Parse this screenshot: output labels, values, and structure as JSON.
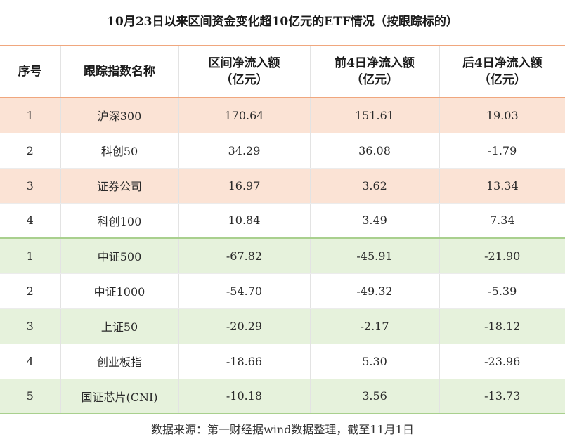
{
  "title": "10月23日以来区间资金变化超10亿元的ETF情况（按跟踪标的）",
  "header": {
    "seq": "序号",
    "index_name": "跟踪指数名称",
    "period_net_inflow": [
      "区间净流入额",
      "（亿元）"
    ],
    "first4d_net_inflow": [
      "前4日净流入额",
      "（亿元）"
    ],
    "last4d_net_inflow": [
      "后4日净流入额",
      "（亿元）"
    ]
  },
  "inflow_rows": [
    {
      "seq": "1",
      "name": "沪深300",
      "period": "170.64",
      "first4": "151.61",
      "last4": "19.03"
    },
    {
      "seq": "2",
      "name": "科创50",
      "period": "34.29",
      "first4": "36.08",
      "last4": "-1.79"
    },
    {
      "seq": "3",
      "name": "证券公司",
      "period": "16.97",
      "first4": "3.62",
      "last4": "13.34"
    },
    {
      "seq": "4",
      "name": "科创100",
      "period": "10.84",
      "first4": "3.49",
      "last4": "7.34"
    }
  ],
  "outflow_rows": [
    {
      "seq": "1",
      "name": "中证500",
      "period": "-67.82",
      "first4": "-45.91",
      "last4": "-21.90"
    },
    {
      "seq": "2",
      "name": "中证1000",
      "period": "-54.70",
      "first4": "-49.32",
      "last4": "-5.39"
    },
    {
      "seq": "3",
      "name": "上证50",
      "period": "-20.29",
      "first4": "-2.17",
      "last4": "-18.12"
    },
    {
      "seq": "4",
      "name": "创业板指",
      "period": "-18.66",
      "first4": "5.30",
      "last4": "-23.96"
    },
    {
      "seq": "5",
      "name": "国证芯片(CNI)",
      "period": "-10.18",
      "first4": "3.56",
      "last4": "-13.73"
    }
  ],
  "footer": "数据来源：第一财经据wind数据整理，截至11月1日",
  "colors": {
    "inflow_band": "#fbe3d5",
    "outflow_band": "#e6f2dc",
    "header_rule": "#f0a77e",
    "outflow_rule": "#a9d08e"
  }
}
